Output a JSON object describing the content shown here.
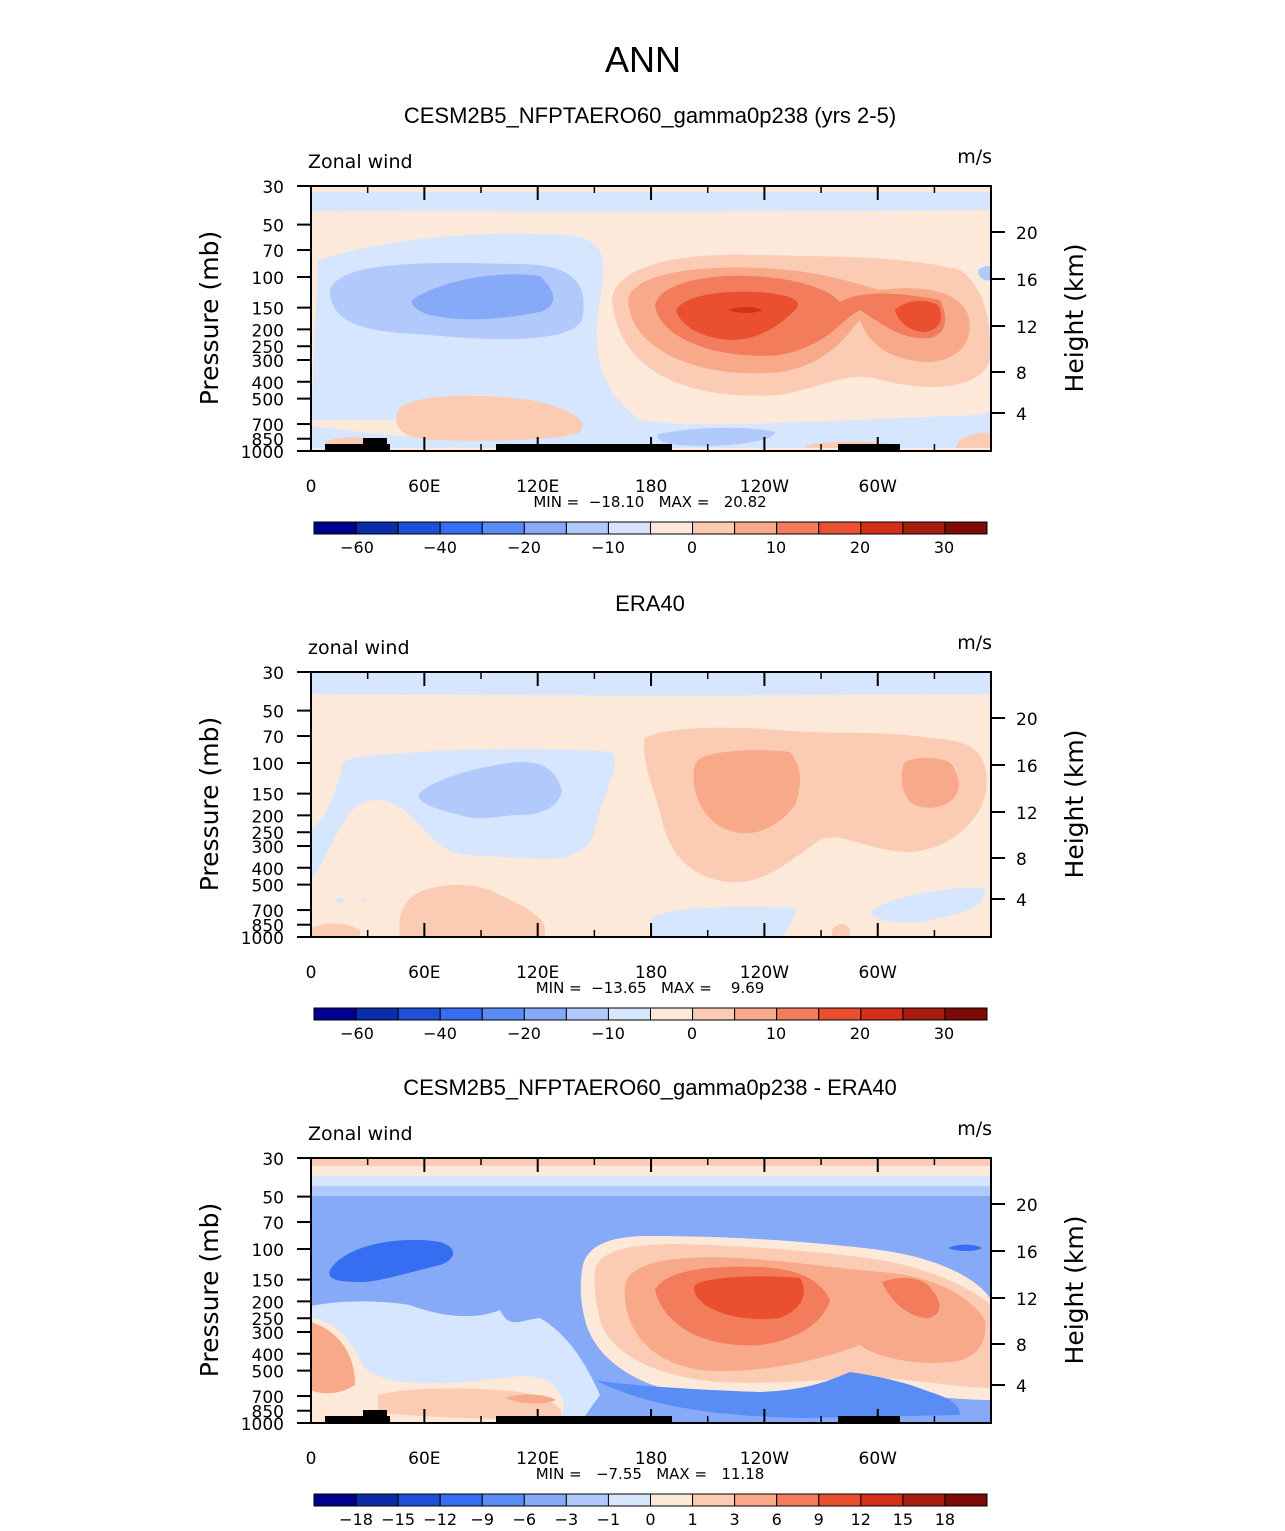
{
  "main_title": "ANN",
  "colors": {
    "shaded_levels": [
      "#00008f",
      "#0a2ca8",
      "#1f4fd6",
      "#356ef0",
      "#5a8cf5",
      "#86aaf8",
      "#b2c9fb",
      "#d6e6fe",
      "#fde9d9",
      "#fbcbb3",
      "#f8a98a",
      "#f37c5c",
      "#ea5030",
      "#d43018",
      "#a61c0e",
      "#7c0a05"
    ],
    "land": "#000000"
  },
  "chart_data": [
    {
      "type": "heatmap",
      "name": "model",
      "title": "CESM2B5_NFPTAERO60_gamma0p238 (yrs 2-5)",
      "left_label": "Zonal wind",
      "units": "m/s",
      "ylabel_left": "Pressure (mb)",
      "ylabel_right": "Height (km)",
      "x_tick_labels": [
        "0",
        "60E",
        "120E",
        "180",
        "120W",
        "60W"
      ],
      "pressure_ticks": [
        "30",
        "50",
        "70",
        "100",
        "150",
        "200",
        "250",
        "300",
        "400",
        "500",
        "700",
        "850",
        "1000"
      ],
      "height_ticks": [
        "20",
        "16",
        "12",
        "8",
        "4"
      ],
      "min_max_text": "MIN =  −18.10   MAX =   20.82",
      "min": -18.1,
      "max": 20.82,
      "colorbar_labels": [
        "−60",
        "−40",
        "−20",
        "−10",
        "0",
        "10",
        "20",
        "30"
      ]
    },
    {
      "type": "heatmap",
      "name": "obs",
      "title": "ERA40",
      "left_label": "zonal wind",
      "units": "m/s",
      "ylabel_left": "Pressure (mb)",
      "ylabel_right": "Height (km)",
      "x_tick_labels": [
        "0",
        "60E",
        "120E",
        "180",
        "120W",
        "60W"
      ],
      "pressure_ticks": [
        "30",
        "50",
        "70",
        "100",
        "150",
        "200",
        "250",
        "300",
        "400",
        "500",
        "700",
        "850",
        "1000"
      ],
      "height_ticks": [
        "20",
        "16",
        "12",
        "8",
        "4"
      ],
      "min_max_text": "MIN =  −13.65   MAX =    9.69",
      "min": -13.65,
      "max": 9.69,
      "colorbar_labels": [
        "−60",
        "−40",
        "−20",
        "−10",
        "0",
        "10",
        "20",
        "30"
      ]
    },
    {
      "type": "heatmap",
      "name": "diff",
      "title": "CESM2B5_NFPTAERO60_gamma0p238 - ERA40",
      "left_label": "Zonal wind",
      "units": "m/s",
      "ylabel_left": "Pressure (mb)",
      "ylabel_right": "Height (km)",
      "x_tick_labels": [
        "0",
        "60E",
        "120E",
        "180",
        "120W",
        "60W"
      ],
      "pressure_ticks": [
        "30",
        "50",
        "70",
        "100",
        "150",
        "200",
        "250",
        "300",
        "400",
        "500",
        "700",
        "850",
        "1000"
      ],
      "height_ticks": [
        "20",
        "16",
        "12",
        "8",
        "4"
      ],
      "min_max_text": "MIN =   −7.55   MAX =   11.18",
      "min": -7.55,
      "max": 11.18,
      "colorbar_labels": [
        "−18",
        "−15",
        "−12",
        "−9",
        "−6",
        "−3",
        "−1",
        "0",
        "1",
        "3",
        "6",
        "9",
        "12",
        "15",
        "18"
      ]
    }
  ]
}
